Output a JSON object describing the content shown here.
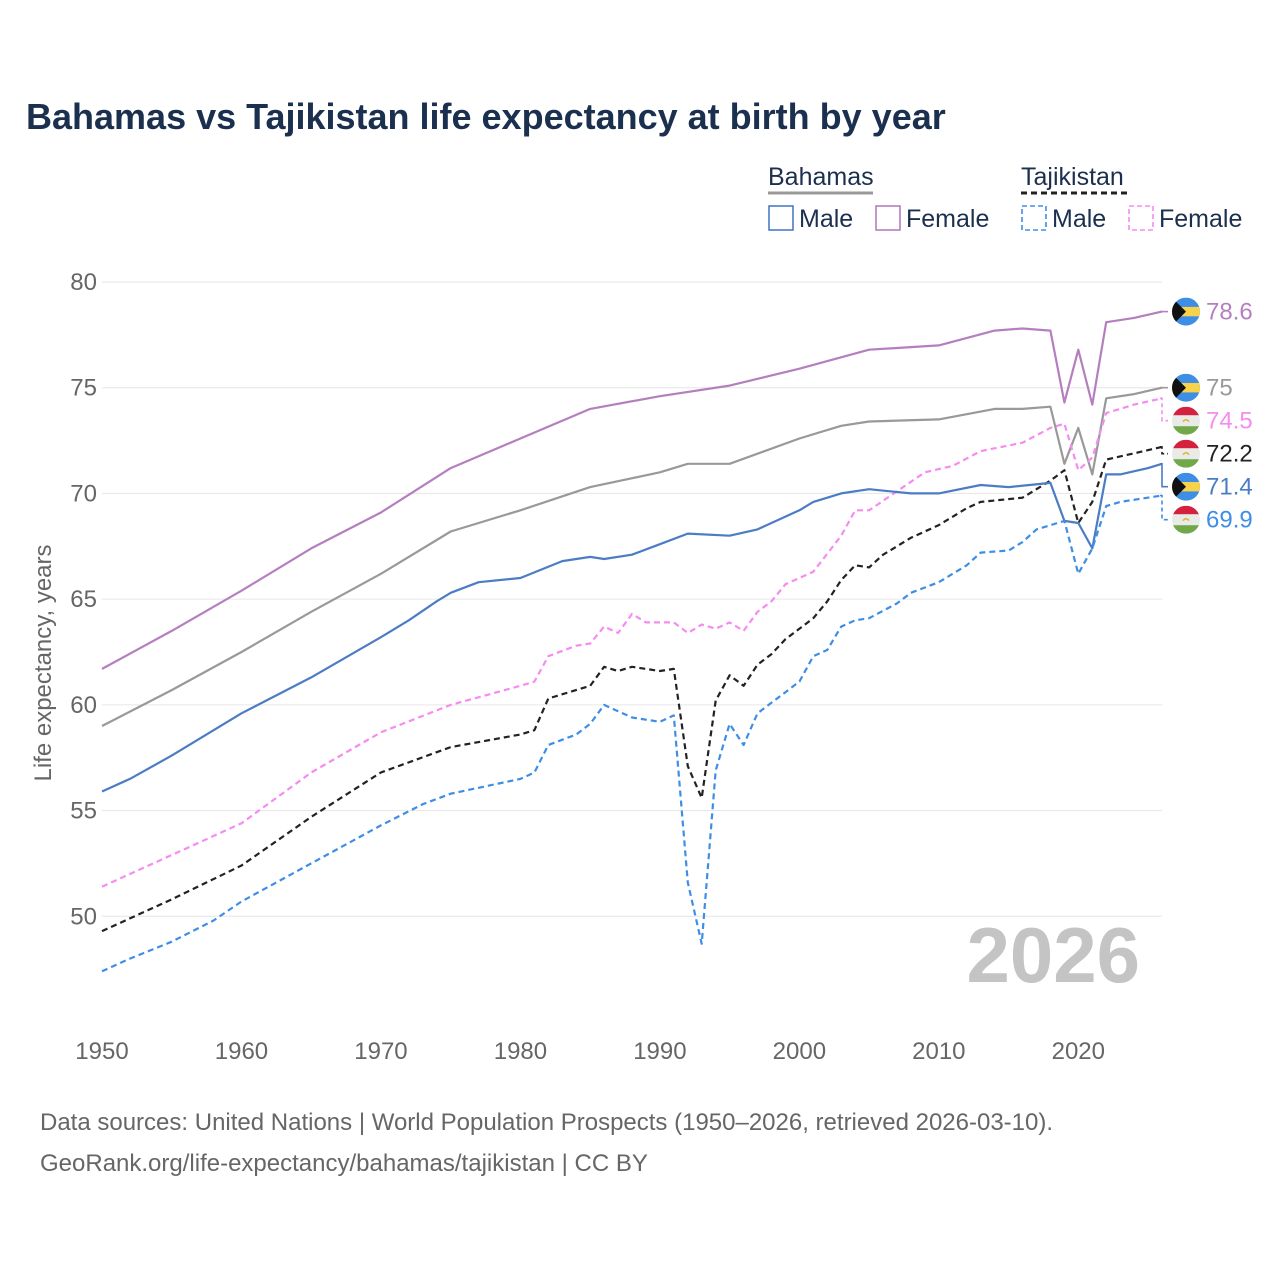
{
  "title": "Bahamas vs Tajikistan life expectancy at birth by year",
  "source_line1": "Data sources: United Nations | World Population Prospects (1950–2026, retrieved 2026-03-10).",
  "source_line2": "GeoRank.org/life-expectancy/bahamas/tajikistan | CC BY",
  "year_watermark": "2026",
  "legend": {
    "country1": "Bahamas",
    "country2": "Tajikistan",
    "male": "Male",
    "female": "Female"
  },
  "colors": {
    "bahamas_total": "#999999",
    "bahamas_male": "#4b7cc4",
    "bahamas_female": "#b57fbf",
    "tajikistan_total": "#222222",
    "tajikistan_male": "#3e8ee6",
    "tajikistan_female": "#f58cf0",
    "title": "#1b2f4f"
  },
  "chart_data": {
    "type": "line",
    "xlabel": "",
    "ylabel": "Life expectancy, years",
    "xlim": [
      1950,
      2026
    ],
    "ylim": [
      45,
      80
    ],
    "x_ticks": [
      1950,
      1960,
      1970,
      1980,
      1990,
      2000,
      2010,
      2020
    ],
    "y_ticks": [
      50,
      55,
      60,
      65,
      70,
      75,
      80
    ],
    "grid": true,
    "series": [
      {
        "id": "bahamas_female",
        "name": "Bahamas Female",
        "country": "Bahamas",
        "dashed": false,
        "end_label": "78.6",
        "label_value": 78.6,
        "points": [
          [
            1950,
            61.7
          ],
          [
            1955,
            63.5
          ],
          [
            1960,
            65.4
          ],
          [
            1965,
            67.4
          ],
          [
            1970,
            69.1
          ],
          [
            1975,
            71.2
          ],
          [
            1980,
            72.6
          ],
          [
            1985,
            74.0
          ],
          [
            1990,
            74.6
          ],
          [
            1995,
            75.1
          ],
          [
            2000,
            75.9
          ],
          [
            2005,
            76.8
          ],
          [
            2010,
            77.0
          ],
          [
            2014,
            77.7
          ],
          [
            2016,
            77.8
          ],
          [
            2018,
            77.7
          ],
          [
            2019,
            74.3
          ],
          [
            2020,
            76.8
          ],
          [
            2021,
            74.2
          ],
          [
            2022,
            78.1
          ],
          [
            2024,
            78.3
          ],
          [
            2026,
            78.6
          ]
        ]
      },
      {
        "id": "bahamas_total",
        "name": "Bahamas",
        "country": "Bahamas",
        "dashed": false,
        "end_label": "75",
        "label_value": 75.0,
        "points": [
          [
            1950,
            59.0
          ],
          [
            1955,
            60.7
          ],
          [
            1960,
            62.5
          ],
          [
            1965,
            64.4
          ],
          [
            1970,
            66.2
          ],
          [
            1975,
            68.2
          ],
          [
            1980,
            69.2
          ],
          [
            1985,
            70.3
          ],
          [
            1990,
            71.0
          ],
          [
            1992,
            71.4
          ],
          [
            1995,
            71.4
          ],
          [
            2000,
            72.6
          ],
          [
            2003,
            73.2
          ],
          [
            2005,
            73.4
          ],
          [
            2010,
            73.5
          ],
          [
            2014,
            74.0
          ],
          [
            2016,
            74.0
          ],
          [
            2018,
            74.1
          ],
          [
            2019,
            71.4
          ],
          [
            2020,
            73.1
          ],
          [
            2021,
            70.9
          ],
          [
            2022,
            74.5
          ],
          [
            2024,
            74.7
          ],
          [
            2026,
            75.0
          ]
        ]
      },
      {
        "id": "tajikistan_female",
        "name": "Tajikistan Female",
        "country": "Tajikistan",
        "dashed": true,
        "end_label": "74.5",
        "label_value": 74.5,
        "points": [
          [
            1950,
            51.4
          ],
          [
            1955,
            52.9
          ],
          [
            1960,
            54.4
          ],
          [
            1965,
            56.8
          ],
          [
            1970,
            58.7
          ],
          [
            1975,
            60.0
          ],
          [
            1980,
            60.9
          ],
          [
            1981,
            61.1
          ],
          [
            1982,
            62.3
          ],
          [
            1984,
            62.8
          ],
          [
            1985,
            62.9
          ],
          [
            1986,
            63.7
          ],
          [
            1987,
            63.4
          ],
          [
            1988,
            64.3
          ],
          [
            1989,
            63.9
          ],
          [
            1991,
            63.9
          ],
          [
            1992,
            63.4
          ],
          [
            1993,
            63.8
          ],
          [
            1994,
            63.6
          ],
          [
            1995,
            63.9
          ],
          [
            1996,
            63.5
          ],
          [
            1997,
            64.4
          ],
          [
            1998,
            64.9
          ],
          [
            1999,
            65.7
          ],
          [
            2001,
            66.3
          ],
          [
            2003,
            68.0
          ],
          [
            2004,
            69.2
          ],
          [
            2005,
            69.2
          ],
          [
            2007,
            70.1
          ],
          [
            2009,
            71.0
          ],
          [
            2011,
            71.3
          ],
          [
            2013,
            72.0
          ],
          [
            2016,
            72.4
          ],
          [
            2018,
            73.1
          ],
          [
            2019,
            73.3
          ],
          [
            2020,
            71.1
          ],
          [
            2021,
            71.7
          ],
          [
            2022,
            73.8
          ],
          [
            2024,
            74.2
          ],
          [
            2026,
            74.5
          ]
        ]
      },
      {
        "id": "tajikistan_total",
        "name": "Tajikistan",
        "country": "Tajikistan",
        "dashed": true,
        "end_label": "72.2",
        "label_value": 72.2,
        "points": [
          [
            1950,
            49.3
          ],
          [
            1955,
            50.8
          ],
          [
            1960,
            52.4
          ],
          [
            1965,
            54.7
          ],
          [
            1970,
            56.8
          ],
          [
            1975,
            58.0
          ],
          [
            1980,
            58.6
          ],
          [
            1981,
            58.8
          ],
          [
            1982,
            60.3
          ],
          [
            1985,
            60.9
          ],
          [
            1986,
            61.8
          ],
          [
            1987,
            61.6
          ],
          [
            1988,
            61.8
          ],
          [
            1990,
            61.6
          ],
          [
            1991,
            61.7
          ],
          [
            1992,
            57.1
          ],
          [
            1993,
            55.6
          ],
          [
            1994,
            60.2
          ],
          [
            1995,
            61.4
          ],
          [
            1996,
            60.9
          ],
          [
            1997,
            61.9
          ],
          [
            1998,
            62.4
          ],
          [
            1999,
            63.1
          ],
          [
            2001,
            64.1
          ],
          [
            2002,
            64.9
          ],
          [
            2003,
            65.9
          ],
          [
            2004,
            66.6
          ],
          [
            2005,
            66.5
          ],
          [
            2006,
            67.1
          ],
          [
            2008,
            67.9
          ],
          [
            2010,
            68.5
          ],
          [
            2012,
            69.3
          ],
          [
            2013,
            69.6
          ],
          [
            2016,
            69.8
          ],
          [
            2018,
            70.6
          ],
          [
            2019,
            71.1
          ],
          [
            2020,
            68.6
          ],
          [
            2021,
            69.6
          ],
          [
            2022,
            71.6
          ],
          [
            2024,
            71.9
          ],
          [
            2026,
            72.2
          ]
        ]
      },
      {
        "id": "bahamas_male",
        "name": "Bahamas Male",
        "country": "Bahamas",
        "dashed": false,
        "end_label": "71.4",
        "label_value": 71.4,
        "points": [
          [
            1950,
            55.9
          ],
          [
            1952,
            56.5
          ],
          [
            1955,
            57.6
          ],
          [
            1960,
            59.6
          ],
          [
            1965,
            61.3
          ],
          [
            1970,
            63.2
          ],
          [
            1972,
            64.0
          ],
          [
            1974,
            64.9
          ],
          [
            1975,
            65.3
          ],
          [
            1977,
            65.8
          ],
          [
            1980,
            66.0
          ],
          [
            1983,
            66.8
          ],
          [
            1985,
            67.0
          ],
          [
            1986,
            66.9
          ],
          [
            1988,
            67.1
          ],
          [
            1990,
            67.6
          ],
          [
            1992,
            68.1
          ],
          [
            1995,
            68.0
          ],
          [
            1997,
            68.3
          ],
          [
            2000,
            69.2
          ],
          [
            2001,
            69.6
          ],
          [
            2003,
            70.0
          ],
          [
            2005,
            70.2
          ],
          [
            2008,
            70.0
          ],
          [
            2010,
            70.0
          ],
          [
            2013,
            70.4
          ],
          [
            2015,
            70.3
          ],
          [
            2018,
            70.5
          ],
          [
            2019,
            68.7
          ],
          [
            2020,
            68.6
          ],
          [
            2021,
            67.4
          ],
          [
            2022,
            70.9
          ],
          [
            2023,
            70.9
          ],
          [
            2025,
            71.2
          ],
          [
            2026,
            71.4
          ]
        ]
      },
      {
        "id": "tajikistan_male",
        "name": "Tajikistan Male",
        "country": "Tajikistan",
        "dashed": true,
        "end_label": "69.9",
        "label_value": 69.9,
        "points": [
          [
            1950,
            47.4
          ],
          [
            1952,
            48.0
          ],
          [
            1955,
            48.8
          ],
          [
            1958,
            49.8
          ],
          [
            1960,
            50.7
          ],
          [
            1965,
            52.5
          ],
          [
            1970,
            54.3
          ],
          [
            1973,
            55.3
          ],
          [
            1975,
            55.8
          ],
          [
            1980,
            56.5
          ],
          [
            1981,
            56.8
          ],
          [
            1982,
            58.1
          ],
          [
            1984,
            58.6
          ],
          [
            1985,
            59.1
          ],
          [
            1986,
            60.0
          ],
          [
            1987,
            59.7
          ],
          [
            1988,
            59.4
          ],
          [
            1990,
            59.2
          ],
          [
            1991,
            59.5
          ],
          [
            1992,
            51.6
          ],
          [
            1993,
            48.7
          ],
          [
            1994,
            56.9
          ],
          [
            1995,
            59.1
          ],
          [
            1996,
            58.1
          ],
          [
            1997,
            59.6
          ],
          [
            1999,
            60.6
          ],
          [
            2000,
            61.1
          ],
          [
            2001,
            62.3
          ],
          [
            2002,
            62.6
          ],
          [
            2003,
            63.7
          ],
          [
            2004,
            64.0
          ],
          [
            2005,
            64.1
          ],
          [
            2007,
            64.8
          ],
          [
            2008,
            65.3
          ],
          [
            2010,
            65.8
          ],
          [
            2012,
            66.6
          ],
          [
            2013,
            67.2
          ],
          [
            2015,
            67.3
          ],
          [
            2016,
            67.7
          ],
          [
            2017,
            68.3
          ],
          [
            2019,
            68.7
          ],
          [
            2020,
            66.2
          ],
          [
            2021,
            67.4
          ],
          [
            2022,
            69.4
          ],
          [
            2023,
            69.6
          ],
          [
            2026,
            69.9
          ]
        ]
      }
    ]
  }
}
